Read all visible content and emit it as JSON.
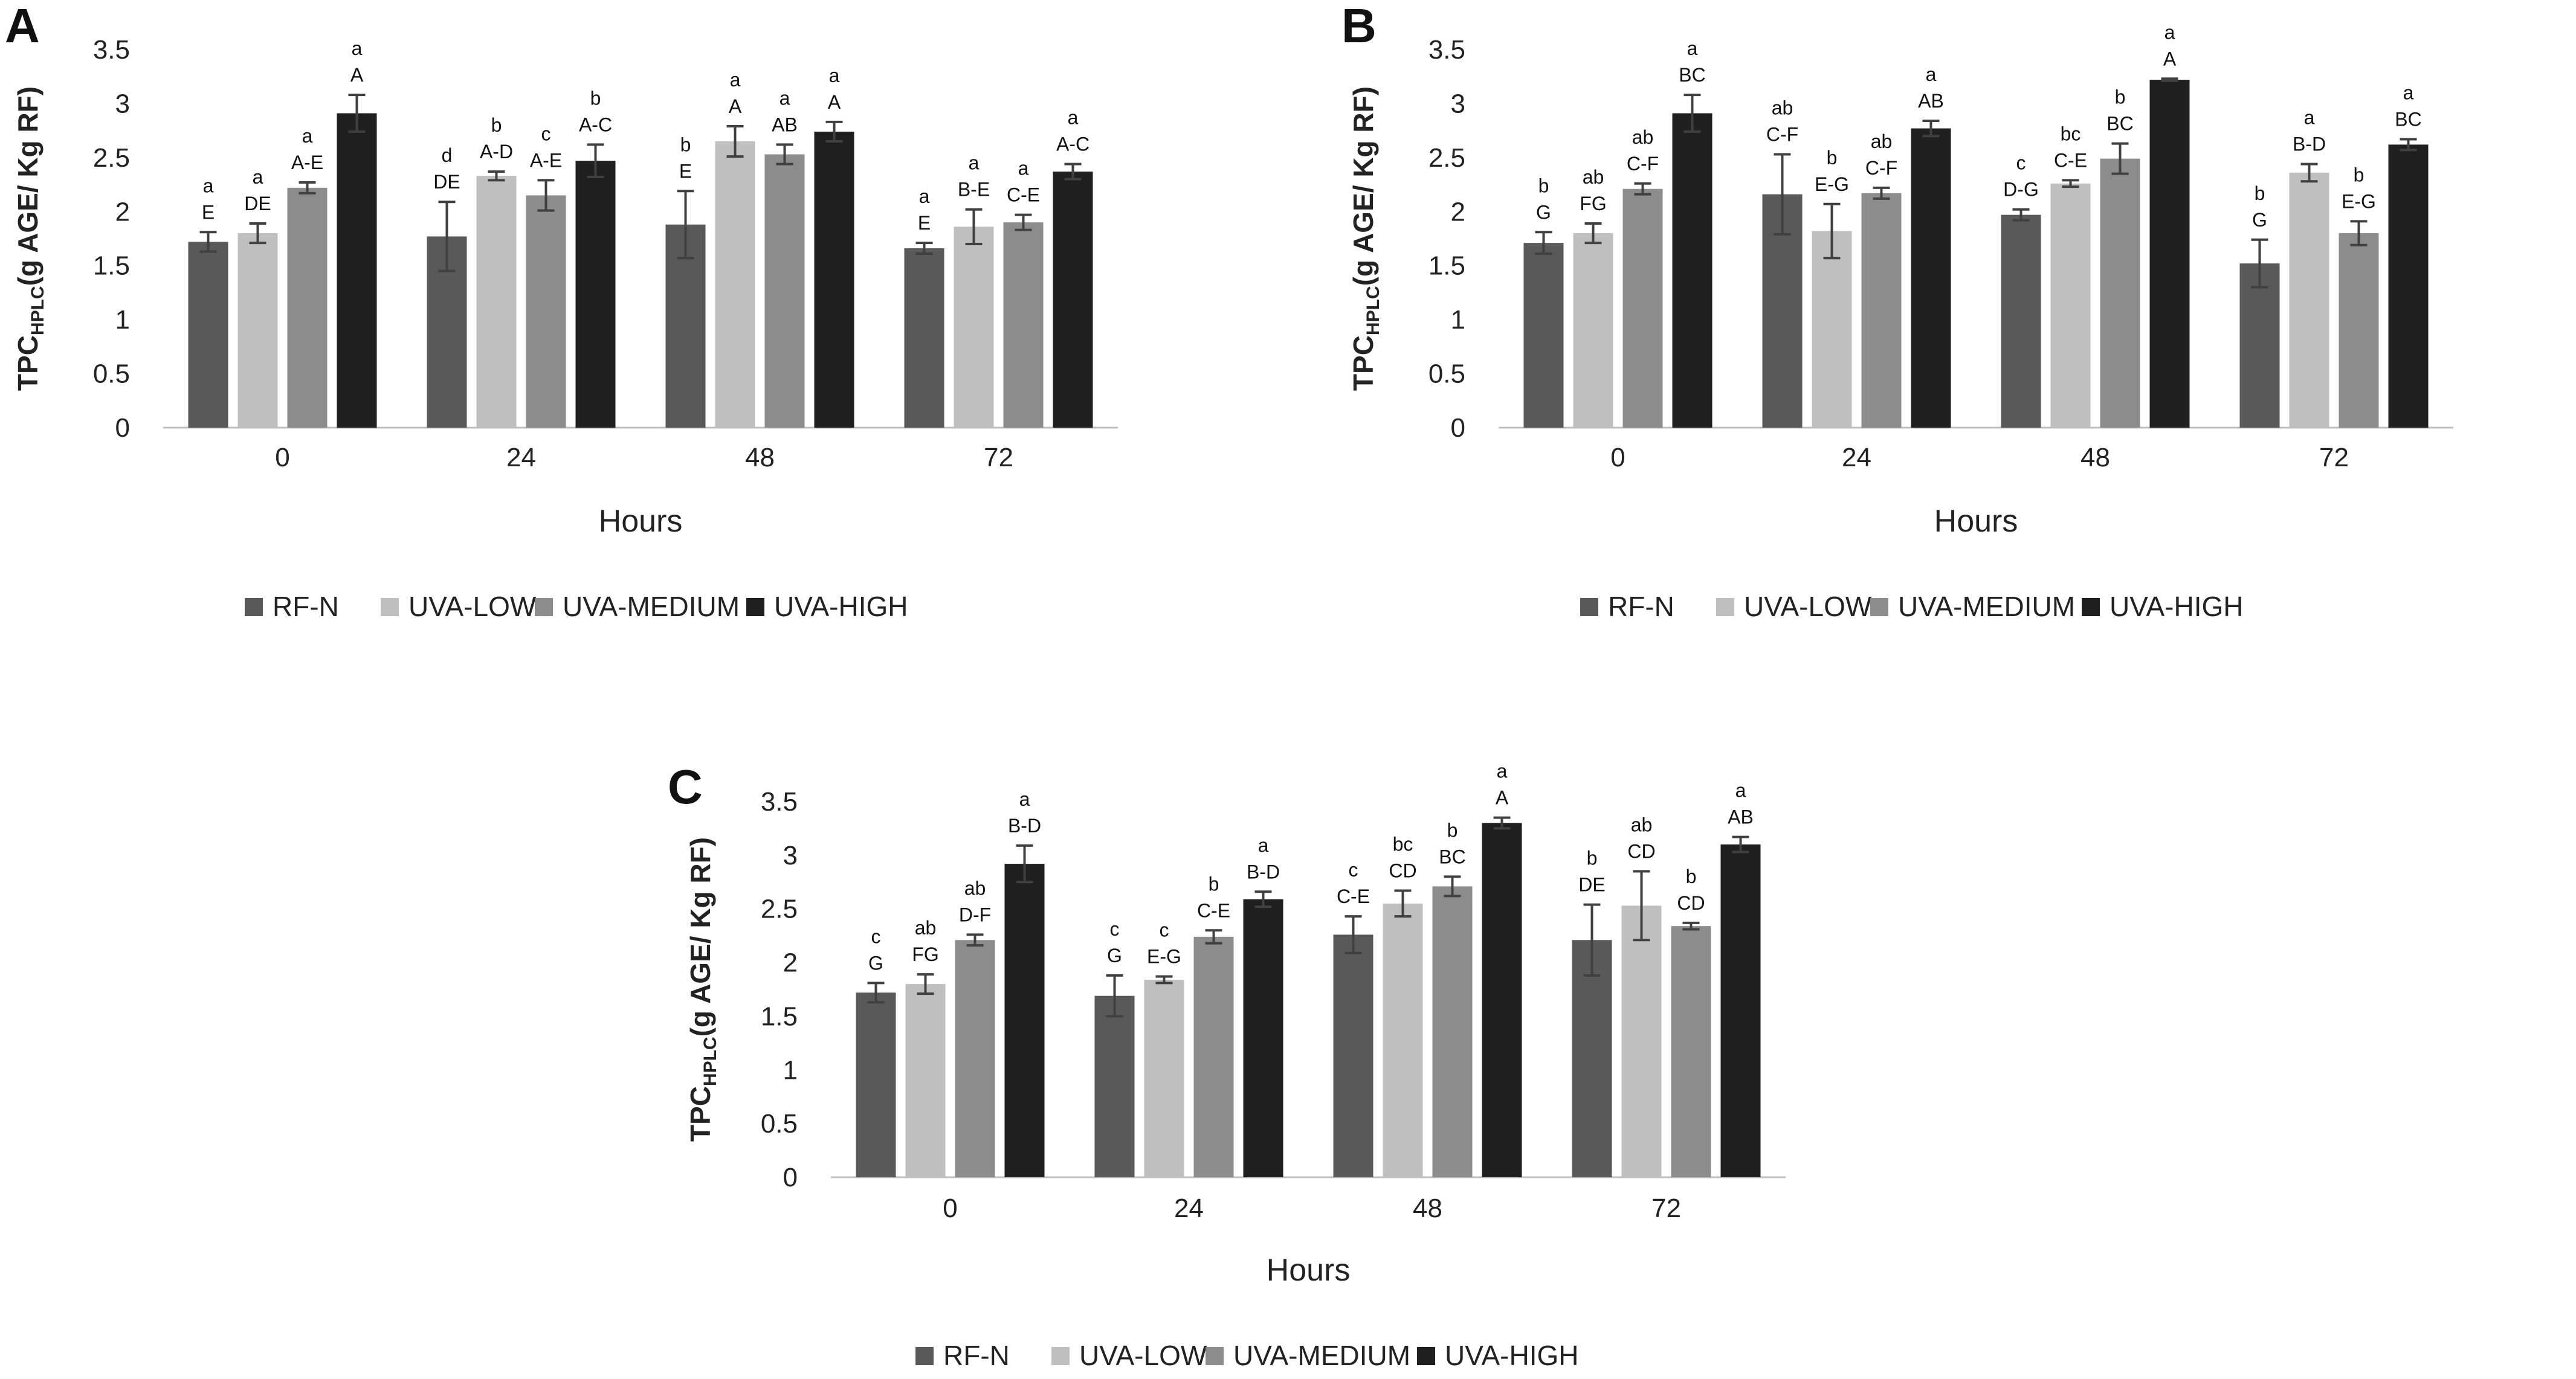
{
  "colors": {
    "series": [
      "#595959",
      "#bfbfbf",
      "#8c8c8c",
      "#1f1f1f"
    ],
    "axis": "#bfbfbf",
    "errorbar": "#404040"
  },
  "ylabel": {
    "main": "TPC",
    "sub": "HPLC",
    "rest": "(g AGE/ Kg RF)"
  },
  "chart_data": [
    {
      "type": "bar",
      "panel": "A",
      "xlabel": "Hours",
      "ylim": [
        0,
        3.5
      ],
      "yticks": [
        "0",
        "0.5",
        "1",
        "1.5",
        "2",
        "2.5",
        "3",
        "3.5"
      ],
      "categories": [
        "0",
        "24",
        "48",
        "72"
      ],
      "series": [
        {
          "name": "RF-N",
          "values": [
            1.72,
            1.77,
            1.88,
            1.66
          ],
          "errors": [
            0.09,
            0.32,
            0.31,
            0.05
          ],
          "labels_lower": [
            "a",
            "d",
            "b",
            "a"
          ],
          "labels_upper": [
            "E",
            "DE",
            "E",
            "E"
          ]
        },
        {
          "name": "UVA-LOW",
          "values": [
            1.8,
            2.33,
            2.65,
            1.86
          ],
          "errors": [
            0.09,
            0.04,
            0.14,
            0.16
          ],
          "labels_lower": [
            "a",
            "b",
            "a",
            "a"
          ],
          "labels_upper": [
            "DE",
            "A-D",
            "A",
            "B-E"
          ]
        },
        {
          "name": "UVA-MEDIUM",
          "values": [
            2.22,
            2.15,
            2.53,
            1.9
          ],
          "errors": [
            0.05,
            0.14,
            0.09,
            0.07
          ],
          "labels_lower": [
            "a",
            "c",
            "a",
            "a"
          ],
          "labels_upper": [
            "A-E",
            "A-E",
            "AB",
            "C-E"
          ]
        },
        {
          "name": "UVA-HIGH",
          "values": [
            2.91,
            2.47,
            2.74,
            2.37
          ],
          "errors": [
            0.17,
            0.15,
            0.09,
            0.07
          ],
          "labels_lower": [
            "a",
            "b",
            "a",
            "a"
          ],
          "labels_upper": [
            "A",
            "A-C",
            "A",
            "A-C"
          ]
        }
      ]
    },
    {
      "type": "bar",
      "panel": "B",
      "xlabel": "Hours",
      "ylim": [
        0,
        3.5
      ],
      "yticks": [
        "0",
        "0.5",
        "1",
        "1.5",
        "2",
        "2.5",
        "3",
        "3.5"
      ],
      "categories": [
        "0",
        "24",
        "48",
        "72"
      ],
      "series": [
        {
          "name": "RF-N",
          "values": [
            1.71,
            2.16,
            1.97,
            1.52
          ],
          "errors": [
            0.1,
            0.37,
            0.05,
            0.22
          ],
          "labels_lower": [
            "b",
            "ab",
            "c",
            "b"
          ],
          "labels_upper": [
            "G",
            "C-F",
            "D-G",
            "G"
          ]
        },
        {
          "name": "UVA-LOW",
          "values": [
            1.8,
            1.82,
            2.26,
            2.36
          ],
          "errors": [
            0.09,
            0.25,
            0.03,
            0.08
          ],
          "labels_lower": [
            "ab",
            "b",
            "bc",
            "a"
          ],
          "labels_upper": [
            "FG",
            "E-G",
            "C-E",
            "B-D"
          ]
        },
        {
          "name": "UVA-MEDIUM",
          "values": [
            2.21,
            2.17,
            2.49,
            1.8
          ],
          "errors": [
            0.05,
            0.05,
            0.14,
            0.11
          ],
          "labels_lower": [
            "ab",
            "ab",
            "b",
            "b"
          ],
          "labels_upper": [
            "C-F",
            "C-F",
            "BC",
            "E-G"
          ]
        },
        {
          "name": "UVA-HIGH",
          "values": [
            2.91,
            2.77,
            3.22,
            2.62
          ],
          "errors": [
            0.17,
            0.07,
            0.01,
            0.05
          ],
          "labels_lower": [
            "a",
            "a",
            "a",
            "a"
          ],
          "labels_upper": [
            "BC",
            "AB",
            "A",
            "BC"
          ]
        }
      ]
    },
    {
      "type": "bar",
      "panel": "C",
      "xlabel": "Hours",
      "ylim": [
        0,
        3.5
      ],
      "yticks": [
        "0",
        "0.5",
        "1",
        "1.5",
        "2",
        "2.5",
        "3",
        "3.5"
      ],
      "categories": [
        "0",
        "24",
        "48",
        "72"
      ],
      "series": [
        {
          "name": "RF-N",
          "values": [
            1.72,
            1.69,
            2.26,
            2.21
          ],
          "errors": [
            0.09,
            0.19,
            0.17,
            0.33
          ],
          "labels_lower": [
            "c",
            "c",
            "c",
            "b"
          ],
          "labels_upper": [
            "G",
            "G",
            "C-E",
            "DE"
          ]
        },
        {
          "name": "UVA-LOW",
          "values": [
            1.8,
            1.84,
            2.55,
            2.53
          ],
          "errors": [
            0.09,
            0.03,
            0.12,
            0.32
          ],
          "labels_lower": [
            "ab",
            "c",
            "bc",
            "ab"
          ],
          "labels_upper": [
            "FG",
            "E-G",
            "CD",
            "CD"
          ]
        },
        {
          "name": "UVA-MEDIUM",
          "values": [
            2.21,
            2.24,
            2.71,
            2.34
          ],
          "errors": [
            0.05,
            0.06,
            0.09,
            0.03
          ],
          "labels_lower": [
            "ab",
            "b",
            "b",
            "b"
          ],
          "labels_upper": [
            "D-F",
            "C-E",
            "BC",
            "CD"
          ]
        },
        {
          "name": "UVA-HIGH",
          "values": [
            2.92,
            2.59,
            3.3,
            3.1
          ],
          "errors": [
            0.17,
            0.07,
            0.05,
            0.07
          ],
          "labels_lower": [
            "a",
            "a",
            "a",
            "a"
          ],
          "labels_upper": [
            "B-D",
            "B-D",
            "A",
            "AB"
          ]
        }
      ]
    }
  ]
}
